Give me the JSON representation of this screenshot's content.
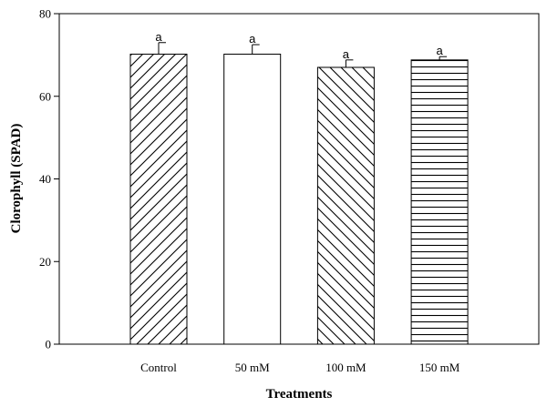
{
  "chart_data": {
    "type": "bar",
    "categories": [
      "Control",
      "50 mM",
      "100 mM",
      "150 mM"
    ],
    "values": [
      70.2,
      70.2,
      67.0,
      68.8
    ],
    "errors": [
      2.8,
      2.3,
      1.8,
      0.8
    ],
    "significance_labels": [
      "a",
      "a",
      "a",
      "a"
    ],
    "fill_patterns": [
      "diagonal-up",
      "none",
      "diagonal-down",
      "horizontal"
    ],
    "xlabel": "Treatments",
    "ylabel": "Clorophyll (SPAD)",
    "ylim": [
      0,
      80
    ],
    "yticks": [
      0,
      20,
      40,
      60,
      80
    ],
    "grid": false,
    "legend": false
  }
}
